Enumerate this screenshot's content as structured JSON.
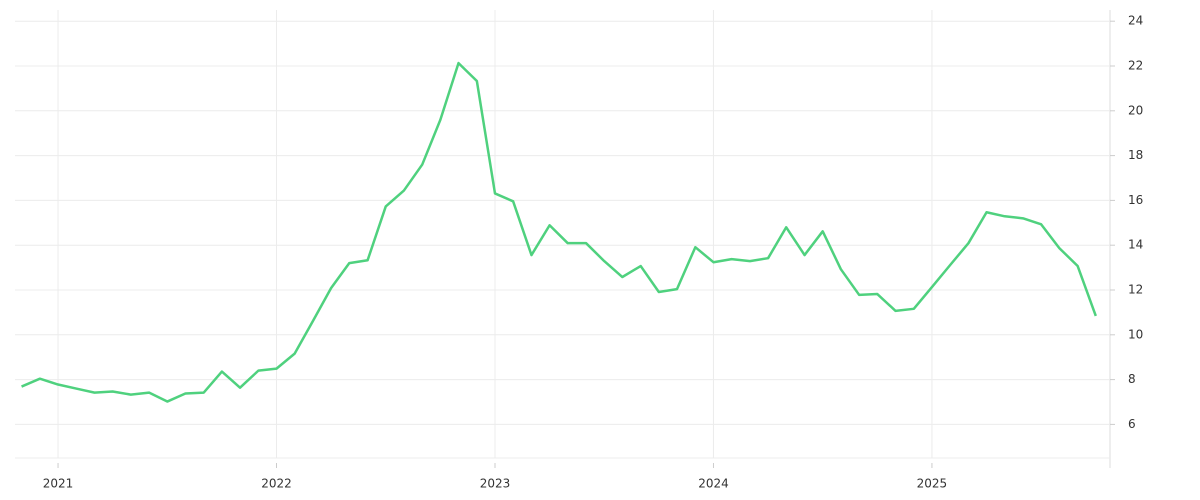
{
  "chart_data": {
    "type": "line",
    "x": [
      2020.833,
      2020.917,
      2021.0,
      2021.083,
      2021.167,
      2021.25,
      2021.333,
      2021.417,
      2021.5,
      2021.583,
      2021.667,
      2021.75,
      2021.833,
      2021.917,
      2022.0,
      2022.083,
      2022.167,
      2022.25,
      2022.333,
      2022.417,
      2022.5,
      2022.583,
      2022.667,
      2022.75,
      2022.833,
      2022.917,
      2023.0,
      2023.083,
      2023.167,
      2023.25,
      2023.333,
      2023.417,
      2023.5,
      2023.583,
      2023.667,
      2023.75,
      2023.833,
      2023.917,
      2024.0,
      2024.083,
      2024.167,
      2024.25,
      2024.333,
      2024.417,
      2024.5,
      2024.583,
      2024.667,
      2024.75,
      2024.833,
      2024.917,
      2025.0,
      2025.083,
      2025.167,
      2025.25,
      2025.333,
      2025.417,
      2025.5,
      2025.583,
      2025.667,
      2025.75
    ],
    "series": [
      {
        "color": "#4fd17e",
        "values": [
          7.69,
          8.04,
          7.78,
          7.6,
          7.42,
          7.47,
          7.33,
          7.42,
          7.02,
          7.38,
          7.42,
          8.36,
          7.64,
          8.4,
          8.49,
          9.16,
          10.62,
          12.09,
          13.2,
          13.33,
          15.73,
          16.44,
          17.6,
          19.6,
          22.13,
          21.33,
          16.31,
          15.96,
          13.56,
          14.89,
          14.09,
          14.09,
          13.29,
          12.58,
          13.07,
          11.91,
          12.04,
          13.91,
          13.24,
          13.38,
          13.29,
          13.42,
          14.8,
          13.56,
          14.62,
          12.93,
          11.78,
          11.82,
          11.07,
          11.16,
          12.13,
          13.11,
          14.09,
          15.47,
          15.29,
          15.2,
          14.93,
          13.87,
          13.07,
          10.84
        ]
      }
    ],
    "xlim": [
      2020.803,
      2025.815
    ],
    "xticks": [
      2021,
      2022,
      2023,
      2024,
      2025
    ],
    "ylim": [
      4.5,
      24.5
    ],
    "yticks": [
      6,
      8,
      10,
      12,
      14,
      16,
      18,
      20,
      22,
      24
    ],
    "grid": true
  }
}
